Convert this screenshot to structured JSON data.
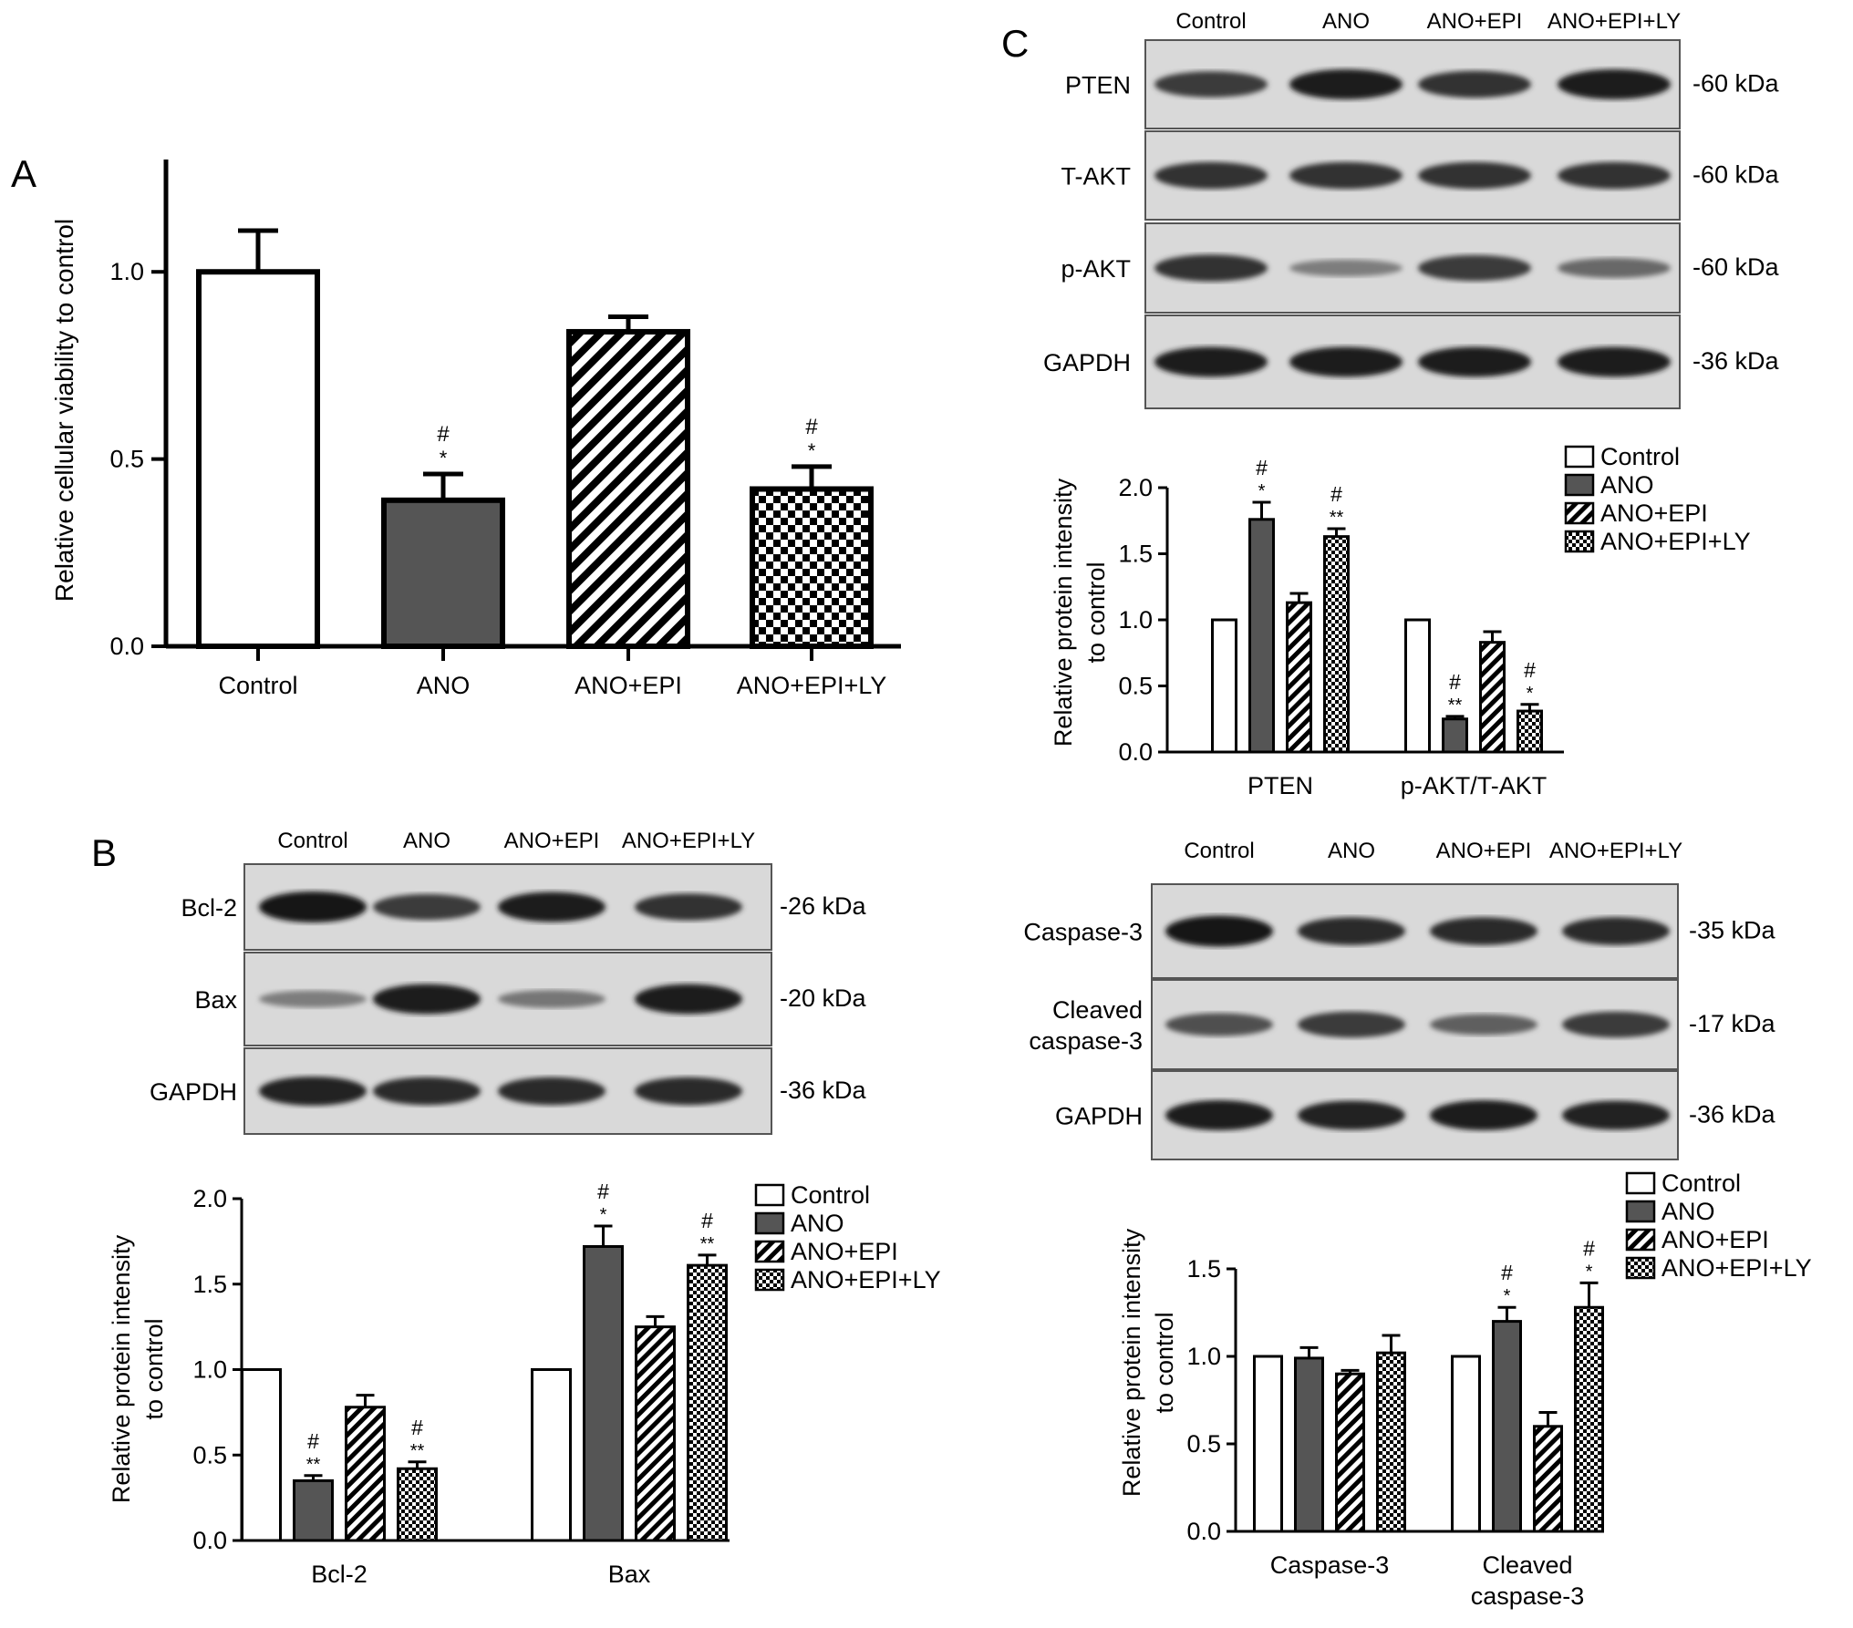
{
  "panels": {
    "a": "A",
    "b": "B",
    "c": "C"
  },
  "colors": {
    "control": "#ffffff",
    "ano": "#555555",
    "stroke": "#000000"
  },
  "chart_data": [
    {
      "id": "A",
      "type": "bar",
      "categories": [
        "Control",
        "ANO",
        "ANO+EPI",
        "ANO+EPI+LY"
      ],
      "values": [
        1.0,
        0.39,
        0.84,
        0.42
      ],
      "errors": [
        0.11,
        0.07,
        0.04,
        0.06
      ],
      "annotations": [
        [],
        [
          "#",
          "*"
        ],
        [],
        [
          "#",
          "*"
        ]
      ],
      "patterns": [
        "white",
        "dark",
        "hatch",
        "check"
      ],
      "ylabel": "Relative cellular viability to control",
      "ylim": [
        0,
        1.3
      ],
      "yticks": [
        "0.0",
        "0.5",
        "1.0"
      ]
    },
    {
      "id": "B-quant",
      "type": "bar",
      "groups": [
        "Bcl-2",
        "Bax"
      ],
      "series": [
        {
          "name": "Control",
          "values": [
            1.0,
            1.0
          ],
          "errors": [
            0,
            0
          ],
          "annotations": [
            [],
            []
          ]
        },
        {
          "name": "ANO",
          "values": [
            0.35,
            1.72
          ],
          "errors": [
            0.03,
            0.12
          ],
          "annotations": [
            [
              "#",
              "**"
            ],
            [
              "#",
              "*"
            ]
          ]
        },
        {
          "name": "ANO+EPI",
          "values": [
            0.78,
            1.25
          ],
          "errors": [
            0.07,
            0.06
          ],
          "annotations": [
            [],
            []
          ]
        },
        {
          "name": "ANO+EPI+LY",
          "values": [
            0.42,
            1.61
          ],
          "errors": [
            0.04,
            0.06
          ],
          "annotations": [
            [
              "#",
              "**"
            ],
            [
              "#",
              "**"
            ]
          ]
        }
      ],
      "ylabel": [
        "Relative protein intensity",
        "to control"
      ],
      "ylim": [
        0,
        2.0
      ],
      "yticks": [
        "0.0",
        "0.5",
        "1.0",
        "1.5",
        "2.0"
      ],
      "legend": "top-right"
    },
    {
      "id": "C-top-quant",
      "type": "bar",
      "groups": [
        "PTEN",
        "p-AKT/T-AKT"
      ],
      "series": [
        {
          "name": "Control",
          "values": [
            1.0,
            1.0
          ],
          "errors": [
            0,
            0
          ],
          "annotations": [
            [],
            []
          ]
        },
        {
          "name": "ANO",
          "values": [
            1.76,
            0.25
          ],
          "errors": [
            0.13,
            0.02
          ],
          "annotations": [
            [
              "#",
              "*"
            ],
            [
              "#",
              "**"
            ]
          ]
        },
        {
          "name": "ANO+EPI",
          "values": [
            1.13,
            0.83
          ],
          "errors": [
            0.07,
            0.08
          ],
          "annotations": [
            [],
            []
          ]
        },
        {
          "name": "ANO+EPI+LY",
          "values": [
            1.63,
            0.31
          ],
          "errors": [
            0.06,
            0.05
          ],
          "annotations": [
            [
              "#",
              "**"
            ],
            [
              "#",
              "*"
            ]
          ]
        }
      ],
      "ylabel": [
        "Relative protein intensity",
        "to control"
      ],
      "ylim": [
        0,
        2.0
      ],
      "yticks": [
        "0.0",
        "0.5",
        "1.0",
        "1.5",
        "2.0"
      ],
      "legend": "top-right"
    },
    {
      "id": "C-bottom-quant",
      "type": "bar",
      "groups": [
        "Caspase-3",
        "Cleaved|caspase-3"
      ],
      "series": [
        {
          "name": "Control",
          "values": [
            1.0,
            1.0
          ],
          "errors": [
            0,
            0
          ],
          "annotations": [
            [],
            []
          ]
        },
        {
          "name": "ANO",
          "values": [
            0.99,
            1.2
          ],
          "errors": [
            0.06,
            0.08
          ],
          "annotations": [
            [],
            [
              "#",
              "*"
            ]
          ]
        },
        {
          "name": "ANO+EPI",
          "values": [
            0.9,
            0.6
          ],
          "errors": [
            0.02,
            0.08
          ],
          "annotations": [
            [],
            []
          ]
        },
        {
          "name": "ANO+EPI+LY",
          "values": [
            1.02,
            1.28
          ],
          "errors": [
            0.1,
            0.14
          ],
          "annotations": [
            [],
            [
              "#",
              "*"
            ]
          ]
        }
      ],
      "ylabel": [
        "Relative protein intensity",
        "to control"
      ],
      "ylim": [
        0,
        1.5
      ],
      "yticks": [
        "0.0",
        "0.5",
        "1.0",
        "1.5"
      ],
      "legend": "top-right"
    }
  ],
  "blots": [
    {
      "id": "blot-B",
      "lanes": [
        "Control",
        "ANO",
        "ANO+EPI",
        "ANO+EPI+LY"
      ],
      "rows": [
        {
          "label": [
            "Bcl-2"
          ],
          "kda": "-26 kDa",
          "intensity": [
            1.0,
            0.75,
            0.95,
            0.8
          ]
        },
        {
          "label": [
            "Bax"
          ],
          "kda": "-20 kDa",
          "intensity": [
            0.3,
            0.95,
            0.35,
            0.95
          ]
        },
        {
          "label": [
            "GAPDH"
          ],
          "kda": "-36 kDa",
          "intensity": [
            0.9,
            0.85,
            0.85,
            0.85
          ]
        }
      ]
    },
    {
      "id": "blot-C-top",
      "lanes": [
        "Control",
        "ANO",
        "ANO+EPI",
        "ANO+EPI+LY"
      ],
      "rows": [
        {
          "label": [
            "PTEN"
          ],
          "kda": "-60 kDa",
          "intensity": [
            0.75,
            0.95,
            0.8,
            0.95
          ]
        },
        {
          "label": [
            "T-AKT"
          ],
          "kda": "-60 kDa",
          "intensity": [
            0.8,
            0.8,
            0.8,
            0.8
          ]
        },
        {
          "label": [
            "p-AKT"
          ],
          "kda": "-60 kDa",
          "intensity": [
            0.8,
            0.3,
            0.75,
            0.45
          ]
        },
        {
          "label": [
            "GAPDH"
          ],
          "kda": "-36 kDa",
          "intensity": [
            0.95,
            0.95,
            0.95,
            0.95
          ]
        }
      ]
    },
    {
      "id": "blot-C-bottom",
      "lanes": [
        "Control",
        "ANO",
        "ANO+EPI",
        "ANO+EPI+LY"
      ],
      "rows": [
        {
          "label": [
            "Caspase-3"
          ],
          "kda": "-35 kDa",
          "intensity": [
            1.0,
            0.85,
            0.85,
            0.85
          ]
        },
        {
          "label": [
            "Cleaved",
            "caspase-3"
          ],
          "kda": "-17 kDa",
          "intensity": [
            0.6,
            0.75,
            0.5,
            0.75
          ]
        },
        {
          "label": [
            "GAPDH"
          ],
          "kda": "-36 kDa",
          "intensity": [
            0.95,
            0.9,
            0.95,
            0.9
          ]
        }
      ]
    }
  ]
}
